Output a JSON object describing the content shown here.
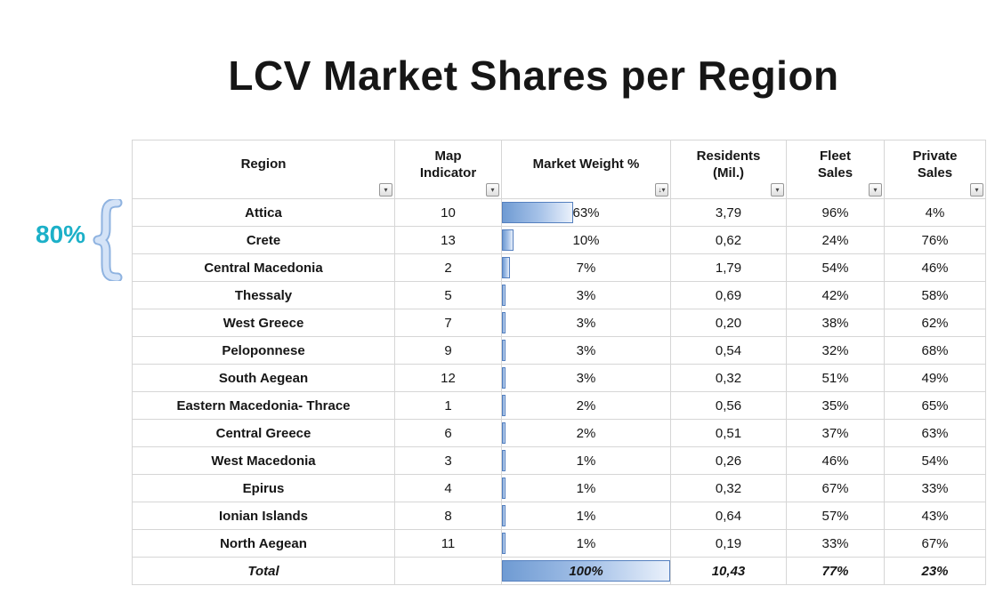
{
  "title": "LCV Market Shares per Region",
  "annotation": {
    "label": "80%",
    "color": "#1cb0c8"
  },
  "chart_data": {
    "type": "table",
    "title": "LCV Market Shares per Region",
    "databar_color": "#638ec6",
    "columns": [
      {
        "label": "Region",
        "filter_icon": "▾"
      },
      {
        "label": "Map Indicator",
        "filter_icon": "▾"
      },
      {
        "label": "Market Weight %",
        "filter_icon": "↓▾"
      },
      {
        "label": "Residents (Mil.)",
        "filter_icon": "▾"
      },
      {
        "label": "Fleet Sales",
        "filter_icon": "▾"
      },
      {
        "label": "Private Sales",
        "filter_icon": "▾"
      }
    ],
    "rows": [
      {
        "region": "Attica",
        "map_indicator": "10",
        "market_weight_pct": 63,
        "market_weight_label": "63%",
        "residents_mil": "3,79",
        "fleet_sales": "96%",
        "private_sales": "4%"
      },
      {
        "region": "Crete",
        "map_indicator": "13",
        "market_weight_pct": 10,
        "market_weight_label": "10%",
        "residents_mil": "0,62",
        "fleet_sales": "24%",
        "private_sales": "76%"
      },
      {
        "region": "Central Macedonia",
        "map_indicator": "2",
        "market_weight_pct": 7,
        "market_weight_label": "7%",
        "residents_mil": "1,79",
        "fleet_sales": "54%",
        "private_sales": "46%"
      },
      {
        "region": "Thessaly",
        "map_indicator": "5",
        "market_weight_pct": 3,
        "market_weight_label": "3%",
        "residents_mil": "0,69",
        "fleet_sales": "42%",
        "private_sales": "58%"
      },
      {
        "region": "West Greece",
        "map_indicator": "7",
        "market_weight_pct": 3,
        "market_weight_label": "3%",
        "residents_mil": "0,20",
        "fleet_sales": "38%",
        "private_sales": "62%"
      },
      {
        "region": "Peloponnese",
        "map_indicator": "9",
        "market_weight_pct": 3,
        "market_weight_label": "3%",
        "residents_mil": "0,54",
        "fleet_sales": "32%",
        "private_sales": "68%"
      },
      {
        "region": "South Aegean",
        "map_indicator": "12",
        "market_weight_pct": 3,
        "market_weight_label": "3%",
        "residents_mil": "0,32",
        "fleet_sales": "51%",
        "private_sales": "49%"
      },
      {
        "region": "Eastern Macedonia- Thrace",
        "map_indicator": "1",
        "market_weight_pct": 2,
        "market_weight_label": "2%",
        "residents_mil": "0,56",
        "fleet_sales": "35%",
        "private_sales": "65%"
      },
      {
        "region": "Central Greece",
        "map_indicator": "6",
        "market_weight_pct": 2,
        "market_weight_label": "2%",
        "residents_mil": "0,51",
        "fleet_sales": "37%",
        "private_sales": "63%"
      },
      {
        "region": "West Macedonia",
        "map_indicator": "3",
        "market_weight_pct": 1,
        "market_weight_label": "1%",
        "residents_mil": "0,26",
        "fleet_sales": "46%",
        "private_sales": "54%"
      },
      {
        "region": "Epirus",
        "map_indicator": "4",
        "market_weight_pct": 1,
        "market_weight_label": "1%",
        "residents_mil": "0,32",
        "fleet_sales": "67%",
        "private_sales": "33%"
      },
      {
        "region": "Ionian Islands",
        "map_indicator": "8",
        "market_weight_pct": 1,
        "market_weight_label": "1%",
        "residents_mil": "0,64",
        "fleet_sales": "57%",
        "private_sales": "43%"
      },
      {
        "region": "North Aegean",
        "map_indicator": "11",
        "market_weight_pct": 1,
        "market_weight_label": "1%",
        "residents_mil": "0,19",
        "fleet_sales": "33%",
        "private_sales": "67%"
      }
    ],
    "total_row": {
      "region": "Total",
      "map_indicator": "",
      "market_weight_pct": 100,
      "market_weight_label": "100%",
      "residents_mil": "10,43",
      "fleet_sales": "77%",
      "private_sales": "23%"
    }
  }
}
